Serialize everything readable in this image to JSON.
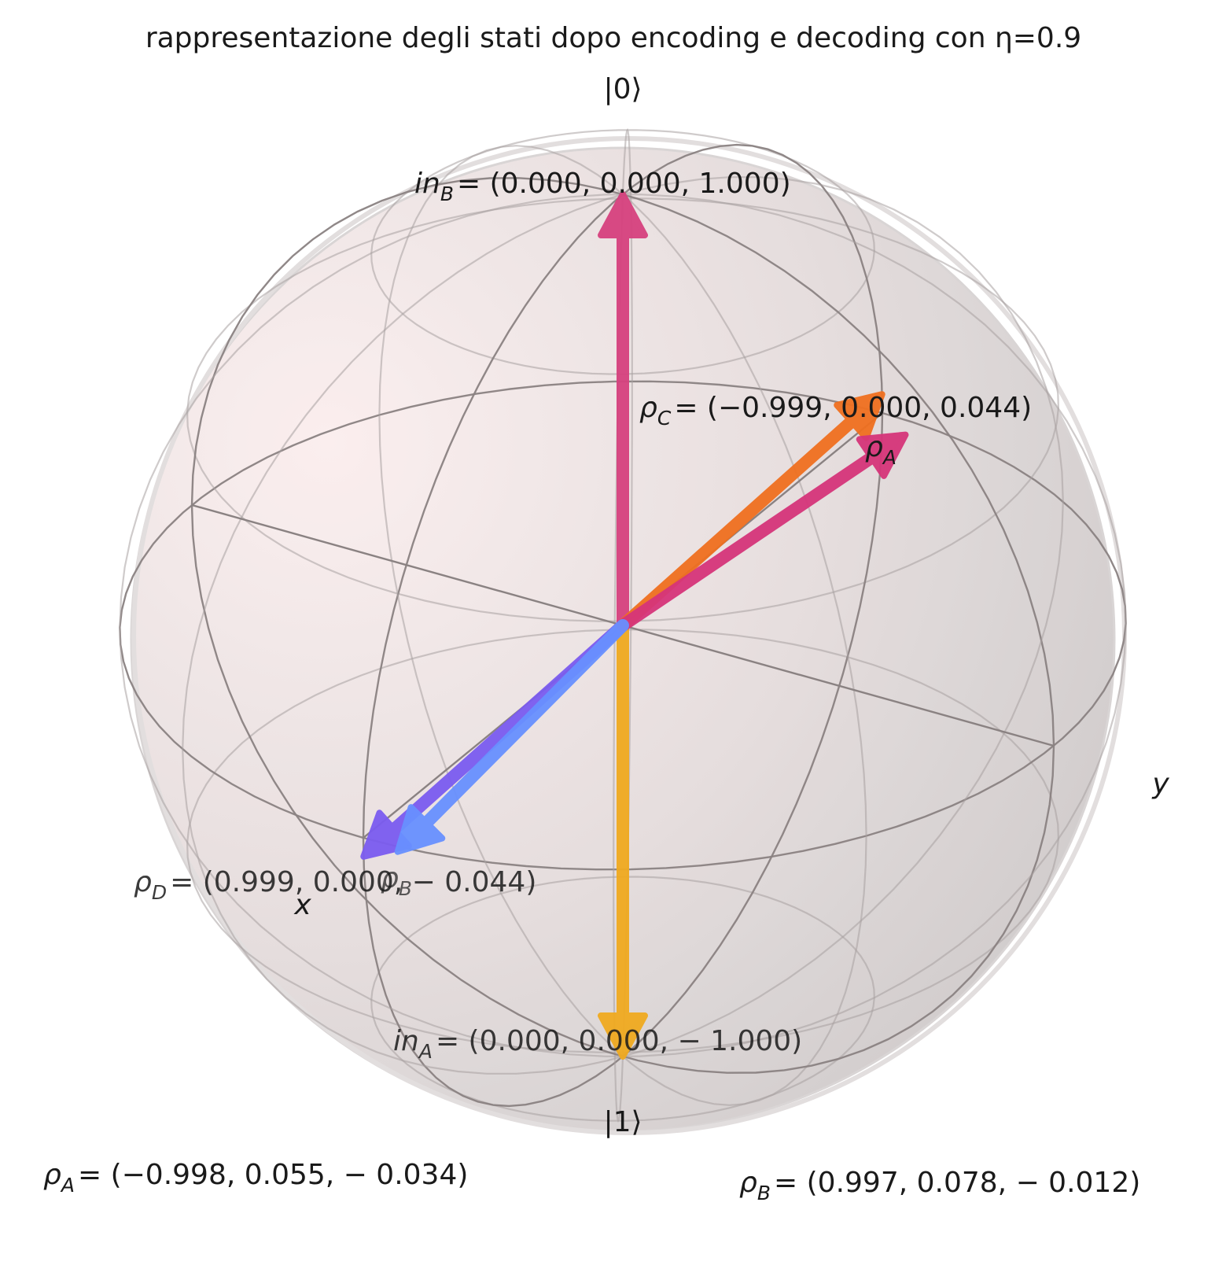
{
  "chart_data": {
    "type": "bloch-sphere",
    "title": "rappresentazione degli stati dopo encoding e decoding con η=0.9",
    "axis_labels": {
      "x": "x",
      "y": "y",
      "top": "|0⟩",
      "bottom": "|1⟩"
    },
    "vectors": [
      {
        "name": "in_B",
        "sym": "in",
        "sub": "B",
        "coords": [
          0.0,
          0.0,
          1.0
        ],
        "text": "= (0.000, 0.000, 1.000)",
        "color": "#d6417e"
      },
      {
        "name": "in_A",
        "sym": "in",
        "sub": "A",
        "coords": [
          0.0,
          0.0,
          -1.0
        ],
        "text": "= (0.000, 0.000, − 1.000)",
        "color": "#f0aa20"
      },
      {
        "name": "rho_C",
        "sym": "ρ",
        "sub": "C",
        "coords": [
          -0.999,
          0.0,
          0.044
        ],
        "text": "= (−0.999, 0.000, 0.044)",
        "color": "#f07020"
      },
      {
        "name": "rho_D",
        "sym": "ρ",
        "sub": "D",
        "coords": [
          0.999,
          0.0,
          -0.044
        ],
        "text": "= (0.999, 0.000, − 0.044)",
        "color": "#7b5cf0"
      },
      {
        "name": "rho_A",
        "sym": "ρ",
        "sub": "A",
        "coords": [
          -0.998,
          0.055,
          -0.034
        ],
        "text": "= (−0.998, 0.055, − 0.034)",
        "color": "#d6357a"
      },
      {
        "name": "rho_B",
        "sym": "ρ",
        "sub": "B",
        "coords": [
          0.997,
          0.078,
          -0.012
        ],
        "text": "= (0.997, 0.078, − 0.012)",
        "color": "#6890ff"
      }
    ],
    "short_labels": {
      "rho_A": "ρA",
      "rho_B": "ρB"
    },
    "sphere_color": "#e6dede",
    "frame_color": "#8a8282"
  }
}
